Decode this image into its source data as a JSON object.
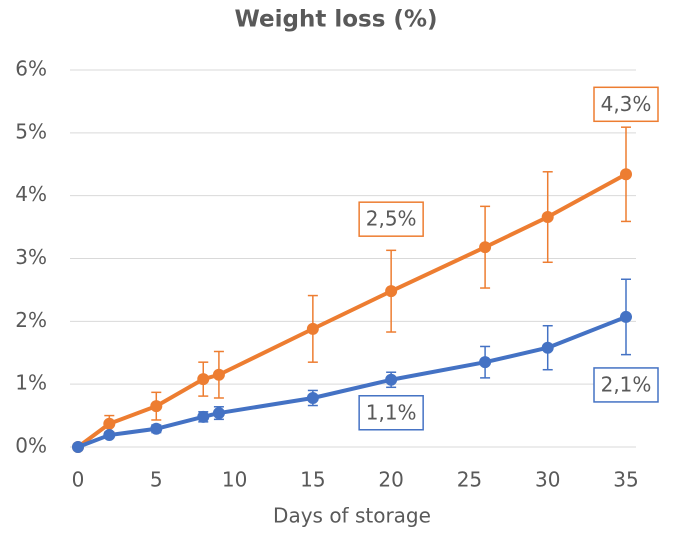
{
  "chart_data": {
    "type": "line",
    "title": "Weight loss (%)",
    "x_label": "Days of storage",
    "x": [
      0,
      2,
      5,
      8,
      9,
      15,
      20,
      26,
      30,
      35
    ],
    "series": [
      {
        "name": "orange",
        "color": "#ed7d31",
        "values": [
          0,
          0.37,
          0.65,
          1.08,
          1.15,
          1.88,
          2.48,
          3.18,
          3.66,
          4.34
        ],
        "errors": [
          0,
          0.13,
          0.22,
          0.27,
          0.37,
          0.53,
          0.65,
          0.65,
          0.72,
          0.75
        ],
        "value_labels": [
          null,
          null,
          null,
          null,
          null,
          null,
          "2,5%",
          null,
          null,
          "4,3%"
        ]
      },
      {
        "name": "blue",
        "color": "#4472c4",
        "values": [
          0,
          0.19,
          0.29,
          0.48,
          0.54,
          0.78,
          1.07,
          1.35,
          1.58,
          2.07
        ],
        "errors": [
          0,
          0.03,
          0.06,
          0.08,
          0.1,
          0.12,
          0.12,
          0.25,
          0.35,
          0.6
        ],
        "value_labels": [
          null,
          null,
          null,
          null,
          null,
          null,
          "1,1%",
          null,
          null,
          "2,1%"
        ]
      }
    ],
    "xlim": [
      0,
      35
    ],
    "xticks": [
      0,
      5,
      10,
      15,
      20,
      25,
      30,
      35
    ],
    "ylim": [
      0,
      6
    ],
    "yticks": [
      {
        "value": 0,
        "label": "0%"
      },
      {
        "value": 1,
        "label": "1%"
      },
      {
        "value": 2,
        "label": "2%"
      },
      {
        "value": 3,
        "label": "3%"
      },
      {
        "value": 4,
        "label": "4%"
      },
      {
        "value": 5,
        "label": "5%"
      },
      {
        "value": 6,
        "label": "6%"
      }
    ],
    "grid": true
  }
}
